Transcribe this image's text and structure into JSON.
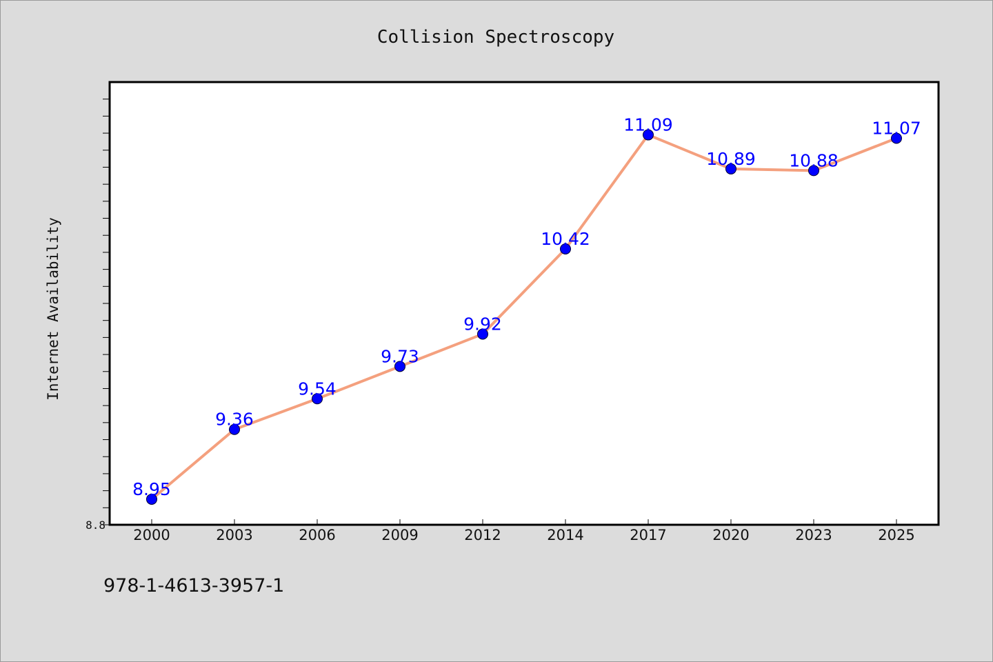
{
  "chart_data": {
    "type": "line",
    "title": "Collision Spectroscopy",
    "xlabel": "",
    "ylabel": "Internet Availability",
    "categories": [
      "2000",
      "2003",
      "2006",
      "2009",
      "2012",
      "2014",
      "2017",
      "2020",
      "2023",
      "2025"
    ],
    "series": [
      {
        "values": [
          8.95,
          9.36,
          9.54,
          9.73,
          9.92,
          10.42,
          11.09,
          10.89,
          10.88,
          11.07
        ],
        "value_labels": [
          "8.95",
          "9.36",
          "9.54",
          "9.73",
          "9.92",
          "10.42",
          "11.09",
          "10.89",
          "10.88",
          "11.07"
        ],
        "line_color": "#f4a07e",
        "marker_color": "#0000ff"
      }
    ],
    "ylim": [
      8.8,
      11.4
    ],
    "ytick_labels": [
      "8.8"
    ],
    "grid": false,
    "legend": "none"
  },
  "footer": {
    "isbn": "978-1-4613-3957-1"
  },
  "colors": {
    "background": "#dcdcdc",
    "plot_background": "#ffffff",
    "label_color": "#0000ff"
  }
}
